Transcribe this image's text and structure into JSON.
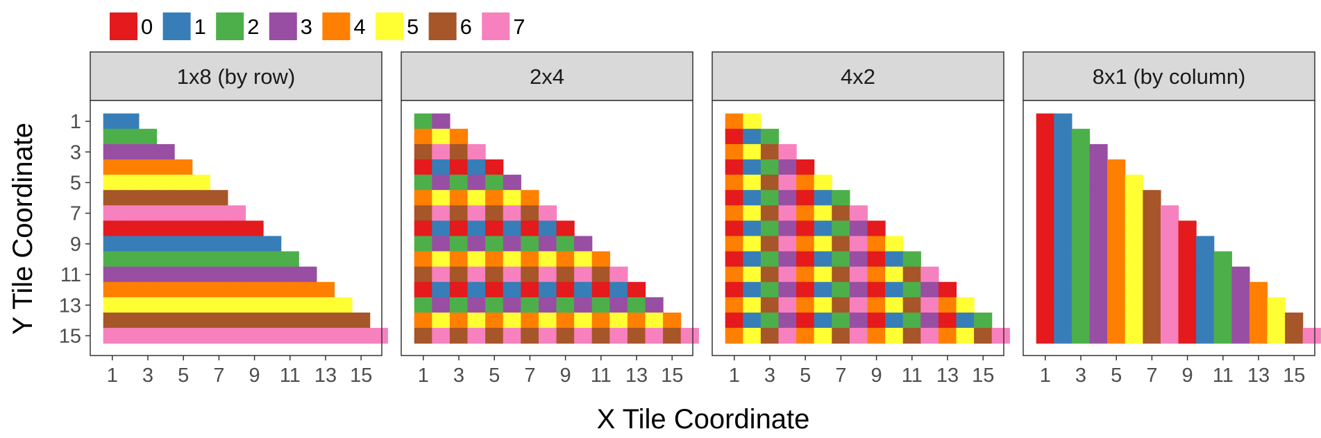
{
  "chart_data": {
    "type": "heatmap",
    "xlabel": "X Tile Coordinate",
    "ylabel": "Y Tile Coordinate",
    "x_ticks": [
      1,
      3,
      5,
      7,
      9,
      11,
      13,
      15
    ],
    "y_ticks": [
      1,
      3,
      5,
      7,
      9,
      11,
      13,
      15
    ],
    "xlim": [
      0,
      16
    ],
    "ylim": [
      0,
      16
    ],
    "y_reversed": true,
    "grid": false,
    "legend": {
      "placement": "top-left",
      "entries": [
        "0",
        "1",
        "2",
        "3",
        "4",
        "5",
        "6",
        "7"
      ],
      "colors": [
        "#e41a1c",
        "#377eb8",
        "#4daf4a",
        "#984ea3",
        "#ff7f00",
        "#ffff33",
        "#a65628",
        "#f781bf"
      ]
    },
    "cell_rule": "lower-triangular tiles: for each y from 1 to 15, x ranges 0..y; value = ((x mod px) + px * (y mod py)) mod 8",
    "panels": [
      {
        "title": "1x8 (by row)",
        "px": 1,
        "py": 8
      },
      {
        "title": "2x4",
        "px": 2,
        "py": 4
      },
      {
        "title": "4x2",
        "px": 4,
        "py": 2
      },
      {
        "title": "8x1 (by column)",
        "px": 8,
        "py": 1
      }
    ]
  }
}
